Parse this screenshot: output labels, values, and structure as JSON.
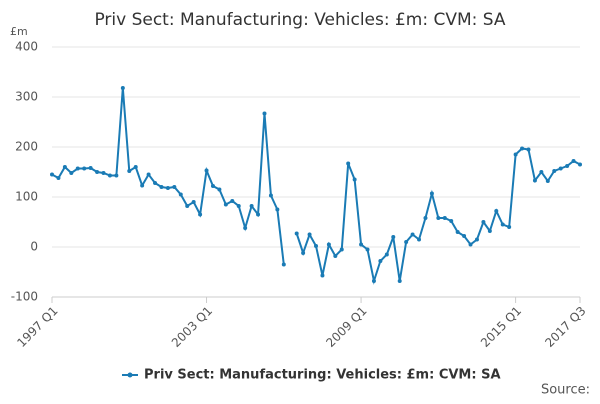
{
  "chart_data": {
    "type": "line",
    "title": "Priv Sect: Manufacturing: Vehicles: £m: CVM: SA",
    "y_unit": "£m",
    "source": "Source:",
    "categories": [
      "1997 Q1",
      null,
      null,
      null,
      null,
      null,
      null,
      null,
      null,
      null,
      null,
      null,
      null,
      null,
      null,
      null,
      null,
      null,
      null,
      null,
      null,
      null,
      null,
      null,
      "2003 Q1",
      null,
      null,
      null,
      null,
      null,
      null,
      null,
      null,
      null,
      null,
      null,
      null,
      null,
      null,
      null,
      null,
      null,
      null,
      null,
      null,
      null,
      null,
      null,
      "2009 Q1",
      null,
      null,
      null,
      null,
      null,
      null,
      null,
      null,
      null,
      null,
      null,
      null,
      null,
      null,
      null,
      null,
      null,
      null,
      null,
      null,
      null,
      null,
      null,
      "2015 Q1",
      null,
      null,
      null,
      null,
      null,
      null,
      null,
      null,
      null,
      "2017 Q3"
    ],
    "series": [
      {
        "name": "Priv Sect: Manufacturing: Vehicles: £m: CVM: SA",
        "color": "#1a7bb5",
        "values": [
          145,
          138,
          160,
          148,
          157,
          157,
          158,
          150,
          148,
          143,
          143,
          318,
          152,
          160,
          123,
          145,
          128,
          120,
          118,
          120,
          105,
          82,
          90,
          65,
          153,
          122,
          115,
          85,
          92,
          82,
          38,
          82,
          65,
          267,
          103,
          75,
          -35,
          null,
          27,
          -12,
          25,
          2,
          -57,
          5,
          -18,
          -5,
          167,
          135,
          5,
          -5,
          -68,
          -28,
          -15,
          20,
          -68,
          10,
          25,
          15,
          58,
          107,
          58,
          58,
          52,
          30,
          22,
          5,
          15,
          50,
          32,
          72,
          45,
          40,
          185,
          197,
          195,
          133,
          150,
          132,
          152,
          157,
          162,
          172,
          165
        ]
      }
    ],
    "ylim": [
      -100,
      400
    ],
    "yticks": [
      -100,
      0,
      100,
      200,
      300,
      400
    ],
    "grid": true,
    "legend": "bottom"
  }
}
